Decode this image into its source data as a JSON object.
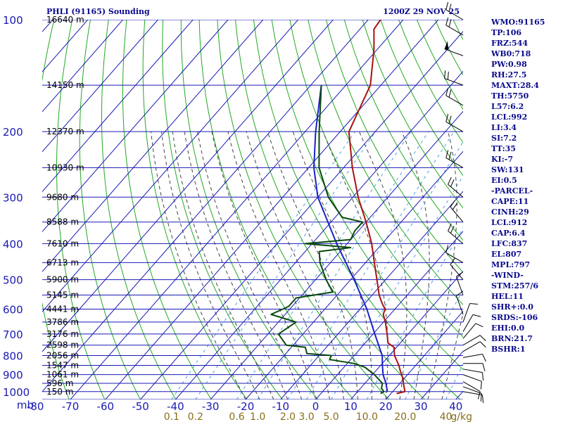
{
  "header": {
    "station": "PHLI (91165) Sounding",
    "time": "1200Z 29 NOV 25"
  },
  "indices": [
    "WMO:91165",
    "TP:106",
    "FRZ:544",
    "WB0:718",
    "PW:0.98",
    "RH:27.5",
    "MAXT:28.4",
    "TH:5750",
    "L57:6.2",
    "LCL:992",
    "LI:3.4",
    "SI:7.2",
    "TT:35",
    "KI:-7",
    "SW:131",
    "EI:0.5",
    "-PARCEL-",
    "CAPE:11",
    "CINH:29",
    "LCL:912",
    "CAP:6.4",
    "LFC:837",
    "EL:807",
    "MPL:797",
    "-WIND-",
    "STM:257/6",
    "HEL:11",
    "SHR+:0.0",
    "SRDS:-106",
    "EHI:0.0",
    "BRN:21.7",
    "BSHR:1"
  ],
  "colors": {
    "grid": "#1a1ab4",
    "dry_adiabat": "#22aa22",
    "moist_adiabat": "#444444",
    "mixing_ratio": "#4aa0e0",
    "temperature": "#aa1010",
    "dewpoint": "#0a4a0a",
    "parcel": "#1a22c8",
    "wind": "#000000"
  },
  "chart_data": {
    "type": "skew-t",
    "title": "PHLI (91165) Sounding",
    "time": "1200Z 29 NOV 25",
    "pressure_unit": "mb",
    "mixing_ratio_unit": "g/kg",
    "pressure_levels": [
      100,
      200,
      300,
      400,
      500,
      600,
      700,
      800,
      900,
      1000
    ],
    "pressure_ticks": [
      "100",
      "200",
      "300",
      "400",
      "500",
      "600",
      "700",
      "800",
      "900",
      "1000"
    ],
    "p_range": [
      100,
      1050
    ],
    "temperature_ticks": [
      -80,
      -70,
      -60,
      -50,
      -40,
      -30,
      -20,
      -10,
      0,
      10,
      20,
      30,
      40
    ],
    "temperature_tick_labels": [
      "-80",
      "-70",
      "-60",
      "-50",
      "-40",
      "-30",
      "-20",
      "-10",
      "0",
      "10",
      "20",
      "30",
      "40"
    ],
    "t_range_at_1000mb": [
      -80,
      40
    ],
    "mixing_ratio_labels": [
      "0.1",
      "0.2",
      "0.6",
      "1.0",
      "2.0",
      "3.0",
      "5.0",
      "10.0",
      "20.0",
      "40",
      "g/kg"
    ],
    "mixing_ratio_values": [
      0.1,
      0.2,
      0.6,
      1.0,
      2.0,
      3.0,
      5.0,
      10.0,
      20.0,
      40.0
    ],
    "height_labels": [
      {
        "p": 100,
        "text": "16640 m"
      },
      {
        "p": 150,
        "text": "14150 m"
      },
      {
        "p": 200,
        "text": "12370 m"
      },
      {
        "p": 250,
        "text": "10930 m"
      },
      {
        "p": 300,
        "text": "9680 m"
      },
      {
        "p": 350,
        "text": "8588 m"
      },
      {
        "p": 400,
        "text": "7610 m"
      },
      {
        "p": 450,
        "text": "6713 m"
      },
      {
        "p": 500,
        "text": "5900 m"
      },
      {
        "p": 550,
        "text": "5145 m"
      },
      {
        "p": 600,
        "text": "4441 m"
      },
      {
        "p": 650,
        "text": "3786 m"
      },
      {
        "p": 700,
        "text": "3176 m"
      },
      {
        "p": 750,
        "text": "2598 m"
      },
      {
        "p": 800,
        "text": "2056 m"
      },
      {
        "p": 850,
        "text": "1547 m"
      },
      {
        "p": 900,
        "text": "1061 m"
      },
      {
        "p": 950,
        "text": "596 m"
      },
      {
        "p": 1000,
        "text": "150 m"
      }
    ],
    "temperature_profile": [
      {
        "p": 1012,
        "t": 21.6
      },
      {
        "p": 1000,
        "t": 23.5
      },
      {
        "p": 960,
        "t": 21.5
      },
      {
        "p": 920,
        "t": 19.5
      },
      {
        "p": 880,
        "t": 17.0
      },
      {
        "p": 850,
        "t": 15.2
      },
      {
        "p": 800,
        "t": 11.5
      },
      {
        "p": 780,
        "t": 10.4
      },
      {
        "p": 760,
        "t": 9.3
      },
      {
        "p": 740,
        "t": 6.5
      },
      {
        "p": 700,
        "t": 4.0
      },
      {
        "p": 650,
        "t": 0.5
      },
      {
        "p": 620,
        "t": -2.0
      },
      {
        "p": 600,
        "t": -2.8
      },
      {
        "p": 580,
        "t": -5.0
      },
      {
        "p": 550,
        "t": -8.0
      },
      {
        "p": 500,
        "t": -12.5
      },
      {
        "p": 450,
        "t": -17.5
      },
      {
        "p": 400,
        "t": -23.0
      },
      {
        "p": 350,
        "t": -30.0
      },
      {
        "p": 300,
        "t": -38.5
      },
      {
        "p": 250,
        "t": -47.5
      },
      {
        "p": 200,
        "t": -57.5
      },
      {
        "p": 150,
        "t": -63.0
      },
      {
        "p": 120,
        "t": -71.0
      },
      {
        "p": 106,
        "t": -76.0
      },
      {
        "p": 100,
        "t": -76.5
      }
    ],
    "dewpoint_profile": [
      {
        "p": 1012,
        "td": 17.0
      },
      {
        "p": 1000,
        "td": 17.5
      },
      {
        "p": 980,
        "td": 16.0
      },
      {
        "p": 950,
        "td": 15.0
      },
      {
        "p": 900,
        "td": 10.5
      },
      {
        "p": 860,
        "td": 6.0
      },
      {
        "p": 840,
        "td": 2.0
      },
      {
        "p": 820,
        "td": -6.0
      },
      {
        "p": 800,
        "td": -6.5
      },
      {
        "p": 790,
        "td": -14.0
      },
      {
        "p": 760,
        "td": -16.0
      },
      {
        "p": 750,
        "td": -22.0
      },
      {
        "p": 700,
        "td": -27.0
      },
      {
        "p": 650,
        "td": -25.0
      },
      {
        "p": 620,
        "td": -34.0
      },
      {
        "p": 590,
        "td": -31.0
      },
      {
        "p": 560,
        "td": -31.0
      },
      {
        "p": 540,
        "td": -22.0
      },
      {
        "p": 500,
        "td": -27.0
      },
      {
        "p": 450,
        "td": -33.0
      },
      {
        "p": 420,
        "td": -36.0
      },
      {
        "p": 410,
        "td": -28.0
      },
      {
        "p": 400,
        "td": -42.0
      },
      {
        "p": 390,
        "td": -30.0
      },
      {
        "p": 370,
        "td": -31.0
      },
      {
        "p": 350,
        "td": -31.0
      },
      {
        "p": 340,
        "td": -38.0
      },
      {
        "p": 300,
        "td": -47.0
      },
      {
        "p": 250,
        "td": -57.0
      },
      {
        "p": 200,
        "td": -66.0
      },
      {
        "p": 150,
        "td": -77.0
      }
    ],
    "parcel_profile": [
      {
        "p": 1000,
        "t": 18.5
      },
      {
        "p": 950,
        "t": 16.0
      },
      {
        "p": 900,
        "t": 13.0
      },
      {
        "p": 850,
        "t": 10.5
      },
      {
        "p": 800,
        "t": 8.0
      },
      {
        "p": 700,
        "t": 0.5
      },
      {
        "p": 600,
        "t": -8.0
      },
      {
        "p": 500,
        "t": -19.0
      },
      {
        "p": 400,
        "t": -33.0
      },
      {
        "p": 300,
        "t": -50.0
      },
      {
        "p": 250,
        "t": -58.5
      },
      {
        "p": 200,
        "t": -67.0
      },
      {
        "p": 150,
        "t": -77.0
      }
    ],
    "wind_barbs": [
      {
        "p": 1000,
        "dir": 100,
        "spd": 10
      },
      {
        "p": 970,
        "dir": 110,
        "spd": 10
      },
      {
        "p": 940,
        "dir": 120,
        "spd": 10
      },
      {
        "p": 900,
        "dir": 110,
        "spd": 10
      },
      {
        "p": 870,
        "dir": 100,
        "spd": 10
      },
      {
        "p": 840,
        "dir": 90,
        "spd": 10
      },
      {
        "p": 810,
        "dir": 80,
        "spd": 10
      },
      {
        "p": 780,
        "dir": 60,
        "spd": 10
      },
      {
        "p": 750,
        "dir": 60,
        "spd": 10
      },
      {
        "p": 720,
        "dir": 40,
        "spd": 10
      },
      {
        "p": 690,
        "dir": 30,
        "spd": 10
      },
      {
        "p": 650,
        "dir": 20,
        "spd": 10
      },
      {
        "p": 620,
        "dir": 340,
        "spd": 10
      },
      {
        "p": 550,
        "dir": 340,
        "spd": 10
      },
      {
        "p": 500,
        "dir": 320,
        "spd": 10
      },
      {
        "p": 450,
        "dir": 300,
        "spd": 10
      },
      {
        "p": 400,
        "dir": 310,
        "spd": 20
      },
      {
        "p": 350,
        "dir": 320,
        "spd": 20
      },
      {
        "p": 300,
        "dir": 310,
        "spd": 20
      },
      {
        "p": 250,
        "dir": 300,
        "spd": 20
      },
      {
        "p": 200,
        "dir": 300,
        "spd": 20
      },
      {
        "p": 170,
        "dir": 300,
        "spd": 20
      },
      {
        "p": 150,
        "dir": 290,
        "spd": 20
      },
      {
        "p": 125,
        "dir": 290,
        "spd": 50
      },
      {
        "p": 110,
        "dir": 300,
        "spd": 20
      },
      {
        "p": 100,
        "dir": 300,
        "spd": 20
      }
    ]
  }
}
